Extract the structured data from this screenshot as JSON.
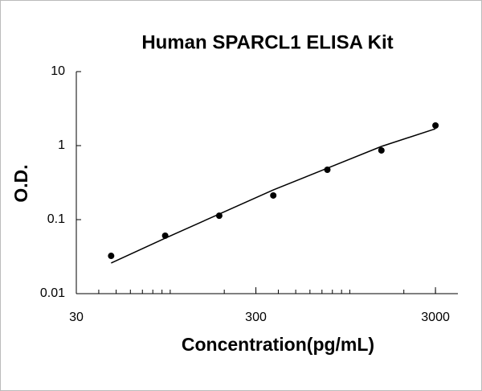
{
  "chart_data": {
    "type": "scatter",
    "title": "Human SPARCL1 ELISA Kit",
    "x_label": "Concentration(pg/mL)",
    "y_label": "O.D.",
    "x": [
      46.88,
      93.75,
      187.5,
      375,
      750,
      1500,
      3000
    ],
    "series": [
      {
        "mode": "markers",
        "color": "#000000",
        "values": [
          0.0324,
          0.0607,
          0.113,
          0.212,
          0.472,
          0.861,
          1.87
        ]
      },
      {
        "mode": "line",
        "color": "#000000",
        "values": [
          0.0259,
          0.0562,
          0.119,
          0.252,
          0.496,
          0.975,
          1.69
        ]
      }
    ],
    "xlim": [
      30,
      4000
    ],
    "ylim": [
      0.01,
      10
    ],
    "xticks": [
      30,
      300,
      3000
    ],
    "yticks": [
      0.01,
      0.1,
      1,
      10
    ],
    "xlog": true,
    "ylog": true,
    "minor_ticks": true,
    "grid": false
  }
}
